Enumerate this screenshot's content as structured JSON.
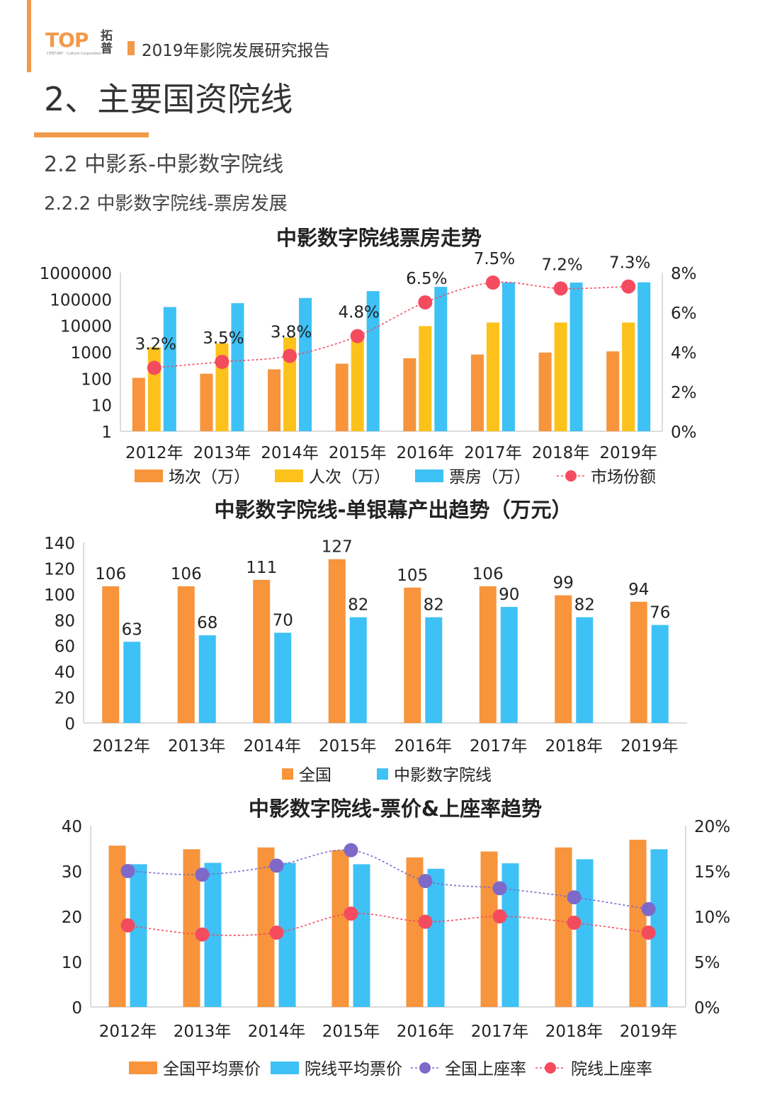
{
  "header": {
    "logo_text": "TOP",
    "logo_cn": "拓普",
    "logo_sub": "CENTURY · Culture Corporation",
    "report_title": "2019年影院发展研究报告"
  },
  "page": {
    "title": "2、主要国资院线",
    "subtitle1": "2.2 中影系-中影数字院线",
    "subtitle2": "2.2.2 中影数字院线-票房发展"
  },
  "colors": {
    "orange": "#f7943c",
    "yellow": "#fcc21b",
    "blue": "#3ec1f5",
    "red": "#f44b5f",
    "purple": "#7e69c9",
    "accent": "#f29a4a"
  },
  "chart_data": [
    {
      "type": "bar",
      "title": "中影数字院线票房走势",
      "categories": [
        "2012年",
        "2013年",
        "2014年",
        "2015年",
        "2016年",
        "2017年",
        "2018年",
        "2019年"
      ],
      "y_scale": "log",
      "y_ticks": [
        "1",
        "10",
        "100",
        "1000",
        "10000",
        "100000",
        "1000000"
      ],
      "ylim": [
        1,
        1000000
      ],
      "y2_ticks": [
        "0%",
        "2%",
        "4%",
        "6%",
        "8%"
      ],
      "y2lim": [
        0,
        8
      ],
      "series": [
        {
          "name": "场次（万）",
          "kind": "bar",
          "color": "#f7943c",
          "values": [
            105,
            150,
            220,
            360,
            580,
            800,
            950,
            1050
          ]
        },
        {
          "name": "人次（万）",
          "kind": "bar",
          "color": "#fcc21b",
          "values": [
            1500,
            2100,
            3500,
            4500,
            9500,
            13000,
            13000,
            13000
          ]
        },
        {
          "name": "票房（万）",
          "kind": "bar",
          "color": "#3ec1f5",
          "values": [
            50000,
            70000,
            110000,
            200000,
            290000,
            430000,
            420000,
            430000
          ]
        },
        {
          "name": "市场份额",
          "kind": "line",
          "axis": "right",
          "color": "#f44b5f",
          "values": [
            3.2,
            3.5,
            3.8,
            4.8,
            6.5,
            7.5,
            7.2,
            7.3
          ],
          "labels": [
            "3.2%",
            "3.5%",
            "3.8%",
            "4.8%",
            "6.5%",
            "7.5%",
            "7.2%",
            "7.3%"
          ]
        }
      ],
      "legend": "bottom"
    },
    {
      "type": "bar",
      "title": "中影数字院线-单银幕产出趋势（万元）",
      "categories": [
        "2012年",
        "2013年",
        "2014年",
        "2015年",
        "2016年",
        "2017年",
        "2018年",
        "2019年"
      ],
      "y_ticks": [
        "0",
        "20",
        "40",
        "60",
        "80",
        "100",
        "120",
        "140"
      ],
      "ylim": [
        0,
        140
      ],
      "series": [
        {
          "name": "全国",
          "color": "#f7943c",
          "values": [
            106,
            106,
            111,
            127,
            105,
            106,
            99,
            94
          ],
          "labels": [
            "106",
            "106",
            "111",
            "127",
            "105",
            "106",
            "99",
            "94"
          ]
        },
        {
          "name": "中影数字院线",
          "color": "#3ec1f5",
          "values": [
            63,
            68,
            70,
            82,
            82,
            90,
            82,
            76
          ],
          "labels": [
            "63",
            "68",
            "70",
            "82",
            "82",
            "90",
            "82",
            "76"
          ]
        }
      ],
      "legend": "bottom"
    },
    {
      "type": "bar",
      "title": "中影数字院线-票价&上座率趋势",
      "categories": [
        "2012年",
        "2013年",
        "2014年",
        "2015年",
        "2016年",
        "2017年",
        "2018年",
        "2019年"
      ],
      "y_ticks": [
        "0",
        "10",
        "20",
        "30",
        "40"
      ],
      "ylim": [
        0,
        40
      ],
      "y2_ticks": [
        "0%",
        "5%",
        "10%",
        "15%",
        "20%"
      ],
      "y2lim": [
        0,
        20
      ],
      "series": [
        {
          "name": "全国平均票价",
          "kind": "bar",
          "color": "#f7943c",
          "values": [
            35.6,
            34.8,
            35.2,
            34.6,
            33.0,
            34.3,
            35.2,
            36.9
          ]
        },
        {
          "name": "院线平均票价",
          "kind": "bar",
          "color": "#3ec1f5",
          "values": [
            31.5,
            31.8,
            31.8,
            31.5,
            30.5,
            31.7,
            32.6,
            34.8
          ]
        },
        {
          "name": "全国上座率",
          "kind": "line",
          "axis": "right",
          "color": "#7e69c9",
          "values": [
            15.0,
            14.6,
            15.6,
            17.3,
            13.9,
            13.1,
            12.1,
            10.8
          ]
        },
        {
          "name": "院线上座率",
          "kind": "line",
          "axis": "right",
          "color": "#f44b5f",
          "values": [
            9.0,
            8.0,
            8.2,
            10.3,
            9.4,
            10.0,
            9.3,
            8.2
          ]
        }
      ],
      "legend": "bottom"
    }
  ]
}
